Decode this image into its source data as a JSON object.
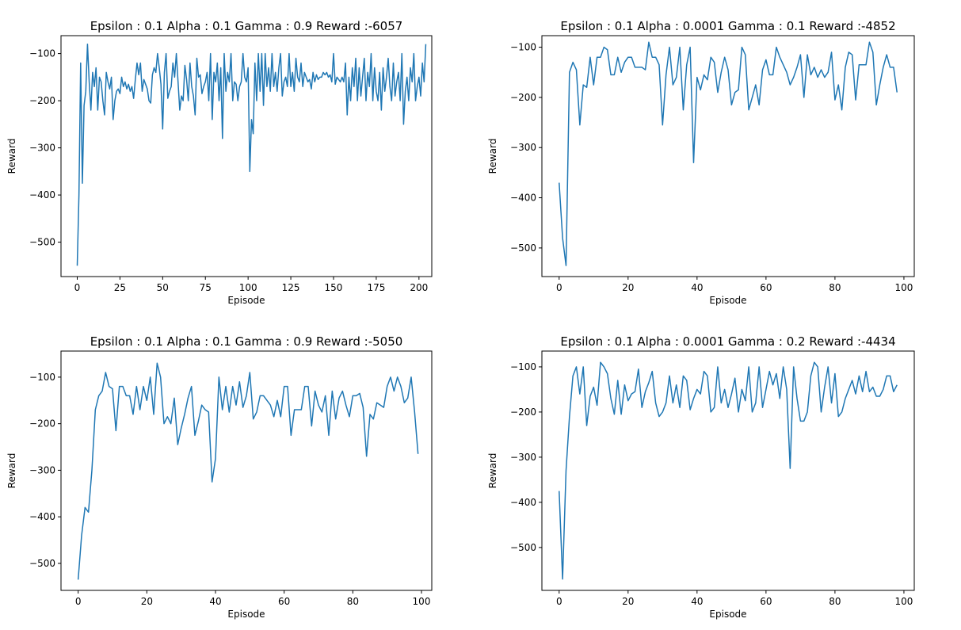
{
  "line_color": "#1f77b4",
  "chart_data": [
    {
      "type": "line",
      "title": "Epsilon : 0.1 Alpha : 0.1 Gamma : 0.9 Reward :-6057",
      "xlabel": "Episode",
      "ylabel": "Reward",
      "xlim": [
        -9.5,
        207.5
      ],
      "ylim": [
        -573,
        -62
      ],
      "xticks": [
        0,
        25,
        50,
        75,
        100,
        125,
        150,
        175,
        200
      ],
      "yticks": [
        -500,
        -400,
        -300,
        -200,
        -100
      ],
      "grid": false,
      "series": [
        {
          "x_start": 0,
          "values": [
            -550,
            -400,
            -120,
            -375,
            -210,
            -180,
            -80,
            -160,
            -220,
            -140,
            -170,
            -130,
            -220,
            -150,
            -160,
            -200,
            -230,
            -140,
            -160,
            -175,
            -150,
            -240,
            -200,
            -180,
            -175,
            -185,
            -150,
            -170,
            -160,
            -175,
            -165,
            -180,
            -170,
            -195,
            -155,
            -120,
            -145,
            -120,
            -180,
            -155,
            -165,
            -175,
            -200,
            -205,
            -145,
            -130,
            -140,
            -100,
            -130,
            -165,
            -260,
            -140,
            -100,
            -195,
            -180,
            -170,
            -120,
            -150,
            -100,
            -160,
            -220,
            -190,
            -200,
            -125,
            -155,
            -200,
            -120,
            -170,
            -190,
            -230,
            -110,
            -150,
            -145,
            -185,
            -170,
            -160,
            -140,
            -200,
            -100,
            -240,
            -140,
            -160,
            -120,
            -200,
            -130,
            -280,
            -100,
            -180,
            -140,
            -160,
            -100,
            -200,
            -160,
            -165,
            -200,
            -170,
            -160,
            -100,
            -150,
            -160,
            -130,
            -350,
            -240,
            -270,
            -120,
            -200,
            -100,
            -180,
            -100,
            -210,
            -100,
            -170,
            -130,
            -180,
            -100,
            -170,
            -140,
            -180,
            -130,
            -100,
            -190,
            -160,
            -150,
            -170,
            -100,
            -170,
            -140,
            -180,
            -110,
            -150,
            -160,
            -120,
            -170,
            -140,
            -150,
            -160,
            -155,
            -175,
            -140,
            -160,
            -145,
            -155,
            -150,
            -150,
            -140,
            -145,
            -140,
            -150,
            -145,
            -160,
            -100,
            -165,
            -150,
            -155,
            -160,
            -150,
            -160,
            -120,
            -230,
            -150,
            -200,
            -130,
            -170,
            -110,
            -200,
            -130,
            -190,
            -150,
            -110,
            -200,
            -140,
            -170,
            -100,
            -200,
            -130,
            -180,
            -200,
            -140,
            -220,
            -130,
            -180,
            -150,
            -110,
            -170,
            -200,
            -120,
            -190,
            -160,
            -140,
            -200,
            -100,
            -250,
            -180,
            -150,
            -200,
            -130,
            -160,
            -100,
            -200,
            -170,
            -150,
            -190,
            -120,
            -160,
            -80
          ]
        }
      ]
    },
    {
      "type": "line",
      "title": "Epsilon : 0.1 Alpha : 0.0001 Gamma : 0.1 Reward :-4852",
      "xlabel": "Episode",
      "ylabel": "Reward",
      "xlim": [
        -5,
        103
      ],
      "ylim": [
        -557,
        -77
      ],
      "xticks": [
        0,
        20,
        40,
        60,
        80,
        100
      ],
      "yticks": [
        -500,
        -400,
        -300,
        -200,
        -100
      ],
      "grid": false,
      "series": [
        {
          "x_start": 0,
          "values": [
            -370,
            -480,
            -535,
            -150,
            -130,
            -145,
            -255,
            -175,
            -180,
            -120,
            -175,
            -120,
            -120,
            -100,
            -105,
            -155,
            -155,
            -120,
            -150,
            -130,
            -120,
            -120,
            -140,
            -140,
            -140,
            -145,
            -90,
            -120,
            -120,
            -135,
            -255,
            -155,
            -100,
            -175,
            -160,
            -100,
            -225,
            -135,
            -100,
            -330,
            -160,
            -185,
            -155,
            -165,
            -120,
            -130,
            -190,
            -150,
            -120,
            -145,
            -215,
            -190,
            -185,
            -100,
            -115,
            -225,
            -200,
            -175,
            -215,
            -145,
            -125,
            -155,
            -155,
            -100,
            -120,
            -135,
            -150,
            -175,
            -160,
            -140,
            -115,
            -200,
            -115,
            -155,
            -140,
            -160,
            -145,
            -160,
            -150,
            -110,
            -205,
            -175,
            -225,
            -140,
            -110,
            -115,
            -205,
            -135,
            -135,
            -135,
            -90,
            -110,
            -215,
            -175,
            -140,
            -115,
            -140,
            -140,
            -190
          ]
        }
      ]
    },
    {
      "type": "line",
      "title": "Epsilon : 0.1 Alpha : 0.1 Gamma : 0.9 Reward :-5050",
      "xlabel": "Episode",
      "ylabel": "Reward",
      "xlim": [
        -5,
        103
      ],
      "ylim": [
        -558,
        -44
      ],
      "xticks": [
        0,
        20,
        40,
        60,
        80,
        100
      ],
      "yticks": [
        -500,
        -400,
        -300,
        -200,
        -100
      ],
      "grid": false,
      "series": [
        {
          "x_start": 0,
          "values": [
            -535,
            -440,
            -380,
            -390,
            -300,
            -170,
            -140,
            -130,
            -90,
            -120,
            -125,
            -215,
            -120,
            -120,
            -140,
            -140,
            -180,
            -120,
            -170,
            -120,
            -150,
            -100,
            -180,
            -70,
            -100,
            -200,
            -185,
            -200,
            -145,
            -245,
            -210,
            -180,
            -145,
            -120,
            -225,
            -195,
            -160,
            -170,
            -175,
            -325,
            -275,
            -100,
            -170,
            -120,
            -175,
            -120,
            -160,
            -110,
            -165,
            -140,
            -90,
            -190,
            -175,
            -140,
            -140,
            -150,
            -160,
            -185,
            -150,
            -185,
            -120,
            -120,
            -225,
            -170,
            -170,
            -170,
            -120,
            -120,
            -205,
            -130,
            -160,
            -175,
            -140,
            -225,
            -130,
            -190,
            -145,
            -130,
            -160,
            -185,
            -140,
            -140,
            -135,
            -165,
            -270,
            -180,
            -190,
            -155,
            -160,
            -165,
            -120,
            -100,
            -130,
            -100,
            -120,
            -155,
            -145,
            -100,
            -175,
            -265
          ]
        }
      ]
    },
    {
      "type": "line",
      "title": "Epsilon : 0.1 Alpha : 0.0001 Gamma : 0.2 Reward :-4434",
      "xlabel": "Episode",
      "ylabel": "Reward",
      "xlim": [
        -5,
        103
      ],
      "ylim": [
        -595,
        -65
      ],
      "xticks": [
        0,
        20,
        40,
        60,
        80,
        100
      ],
      "yticks": [
        -500,
        -400,
        -300,
        -200,
        -100
      ],
      "grid": false,
      "series": [
        {
          "x_start": 0,
          "values": [
            -375,
            -570,
            -330,
            -210,
            -120,
            -100,
            -160,
            -100,
            -230,
            -165,
            -145,
            -185,
            -90,
            -100,
            -115,
            -170,
            -205,
            -130,
            -205,
            -140,
            -175,
            -160,
            -155,
            -105,
            -190,
            -155,
            -135,
            -110,
            -180,
            -210,
            -200,
            -180,
            -120,
            -180,
            -140,
            -190,
            -120,
            -130,
            -195,
            -170,
            -150,
            -160,
            -110,
            -120,
            -200,
            -190,
            -100,
            -180,
            -150,
            -190,
            -160,
            -125,
            -200,
            -150,
            -175,
            -100,
            -200,
            -180,
            -100,
            -190,
            -150,
            -110,
            -140,
            -115,
            -170,
            -100,
            -150,
            -325,
            -100,
            -170,
            -220,
            -220,
            -200,
            -120,
            -90,
            -100,
            -200,
            -145,
            -100,
            -180,
            -115,
            -210,
            -200,
            -170,
            -150,
            -130,
            -160,
            -120,
            -155,
            -110,
            -155,
            -145,
            -165,
            -165,
            -150,
            -120,
            -120,
            -155,
            -140
          ]
        }
      ]
    }
  ]
}
